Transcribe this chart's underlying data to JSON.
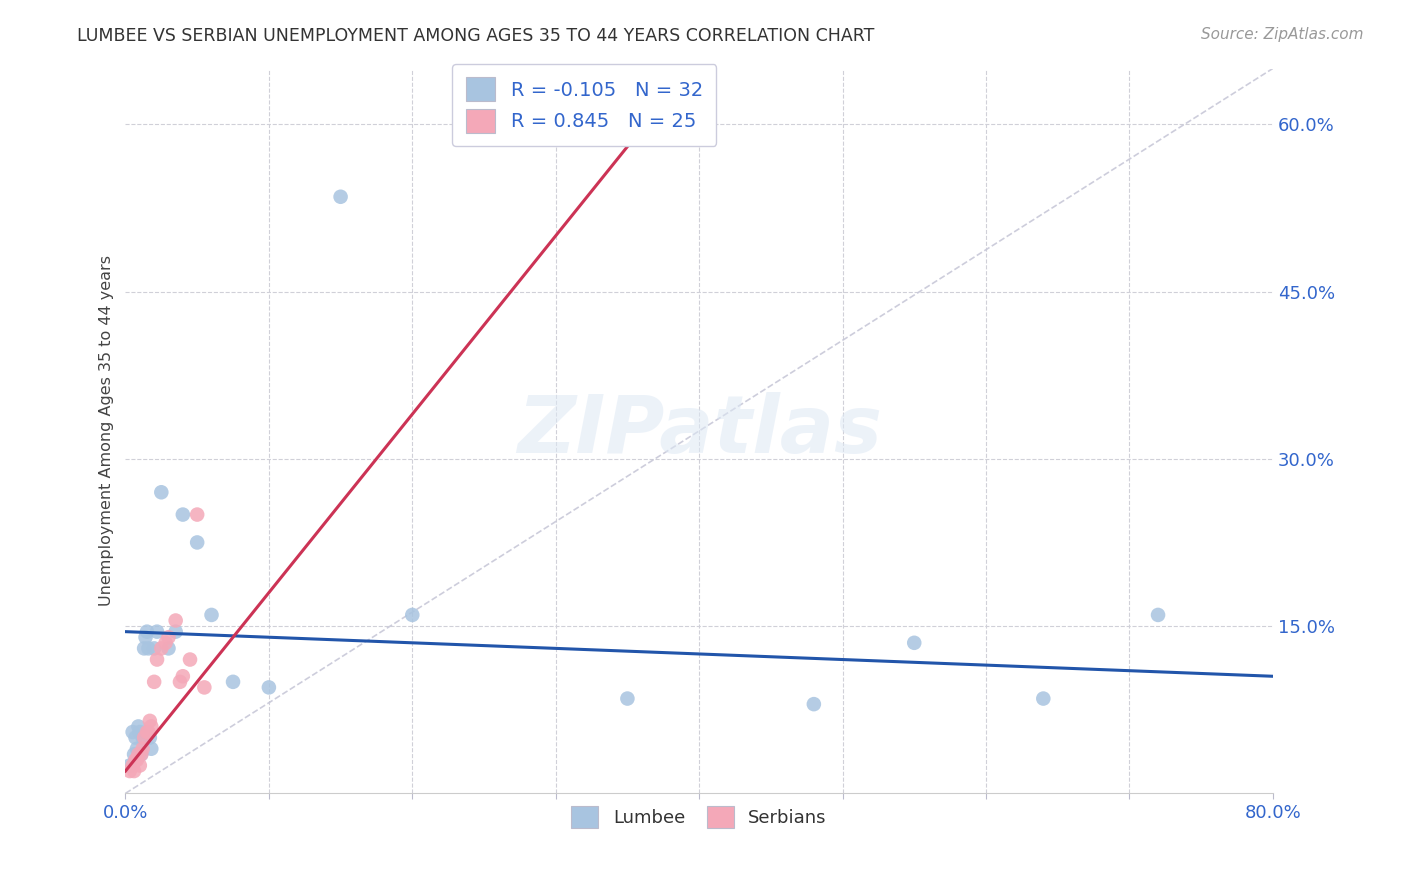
{
  "title": "LUMBEE VS SERBIAN UNEMPLOYMENT AMONG AGES 35 TO 44 YEARS CORRELATION CHART",
  "source": "Source: ZipAtlas.com",
  "ylabel_label": "Unemployment Among Ages 35 to 44 years",
  "xlim": [
    0.0,
    0.8
  ],
  "ylim": [
    0.0,
    0.65
  ],
  "ytick_positions": [
    0.15,
    0.3,
    0.45,
    0.6
  ],
  "ytick_labels": [
    "15.0%",
    "30.0%",
    "45.0%",
    "60.0%"
  ],
  "lumbee_r": "-0.105",
  "lumbee_n": "32",
  "serbian_r": "0.845",
  "serbian_n": "25",
  "lumbee_color": "#a8c4e0",
  "serbian_color": "#f4a8b8",
  "lumbee_line_color": "#2255aa",
  "serbian_line_color": "#cc3355",
  "diagonal_color": "#c8c8d8",
  "lumbee_x": [
    0.003,
    0.005,
    0.006,
    0.007,
    0.008,
    0.009,
    0.01,
    0.011,
    0.012,
    0.013,
    0.014,
    0.015,
    0.016,
    0.017,
    0.018,
    0.02,
    0.022,
    0.025,
    0.03,
    0.035,
    0.04,
    0.05,
    0.06,
    0.075,
    0.1,
    0.15,
    0.2,
    0.35,
    0.48,
    0.55,
    0.64,
    0.72
  ],
  "lumbee_y": [
    0.025,
    0.055,
    0.035,
    0.05,
    0.04,
    0.06,
    0.055,
    0.035,
    0.05,
    0.13,
    0.14,
    0.145,
    0.13,
    0.05,
    0.04,
    0.13,
    0.145,
    0.27,
    0.13,
    0.145,
    0.25,
    0.225,
    0.16,
    0.1,
    0.095,
    0.535,
    0.16,
    0.085,
    0.08,
    0.135,
    0.085,
    0.16
  ],
  "serbian_x": [
    0.003,
    0.005,
    0.006,
    0.007,
    0.008,
    0.009,
    0.01,
    0.011,
    0.012,
    0.013,
    0.015,
    0.016,
    0.017,
    0.018,
    0.02,
    0.022,
    0.025,
    0.028,
    0.03,
    0.035,
    0.038,
    0.04,
    0.045,
    0.05,
    0.055
  ],
  "serbian_y": [
    0.02,
    0.025,
    0.02,
    0.03,
    0.03,
    0.035,
    0.025,
    0.035,
    0.04,
    0.05,
    0.055,
    0.055,
    0.065,
    0.06,
    0.1,
    0.12,
    0.13,
    0.135,
    0.14,
    0.155,
    0.1,
    0.105,
    0.12,
    0.25,
    0.095
  ],
  "watermark": "ZIPatlas",
  "background_color": "#ffffff"
}
